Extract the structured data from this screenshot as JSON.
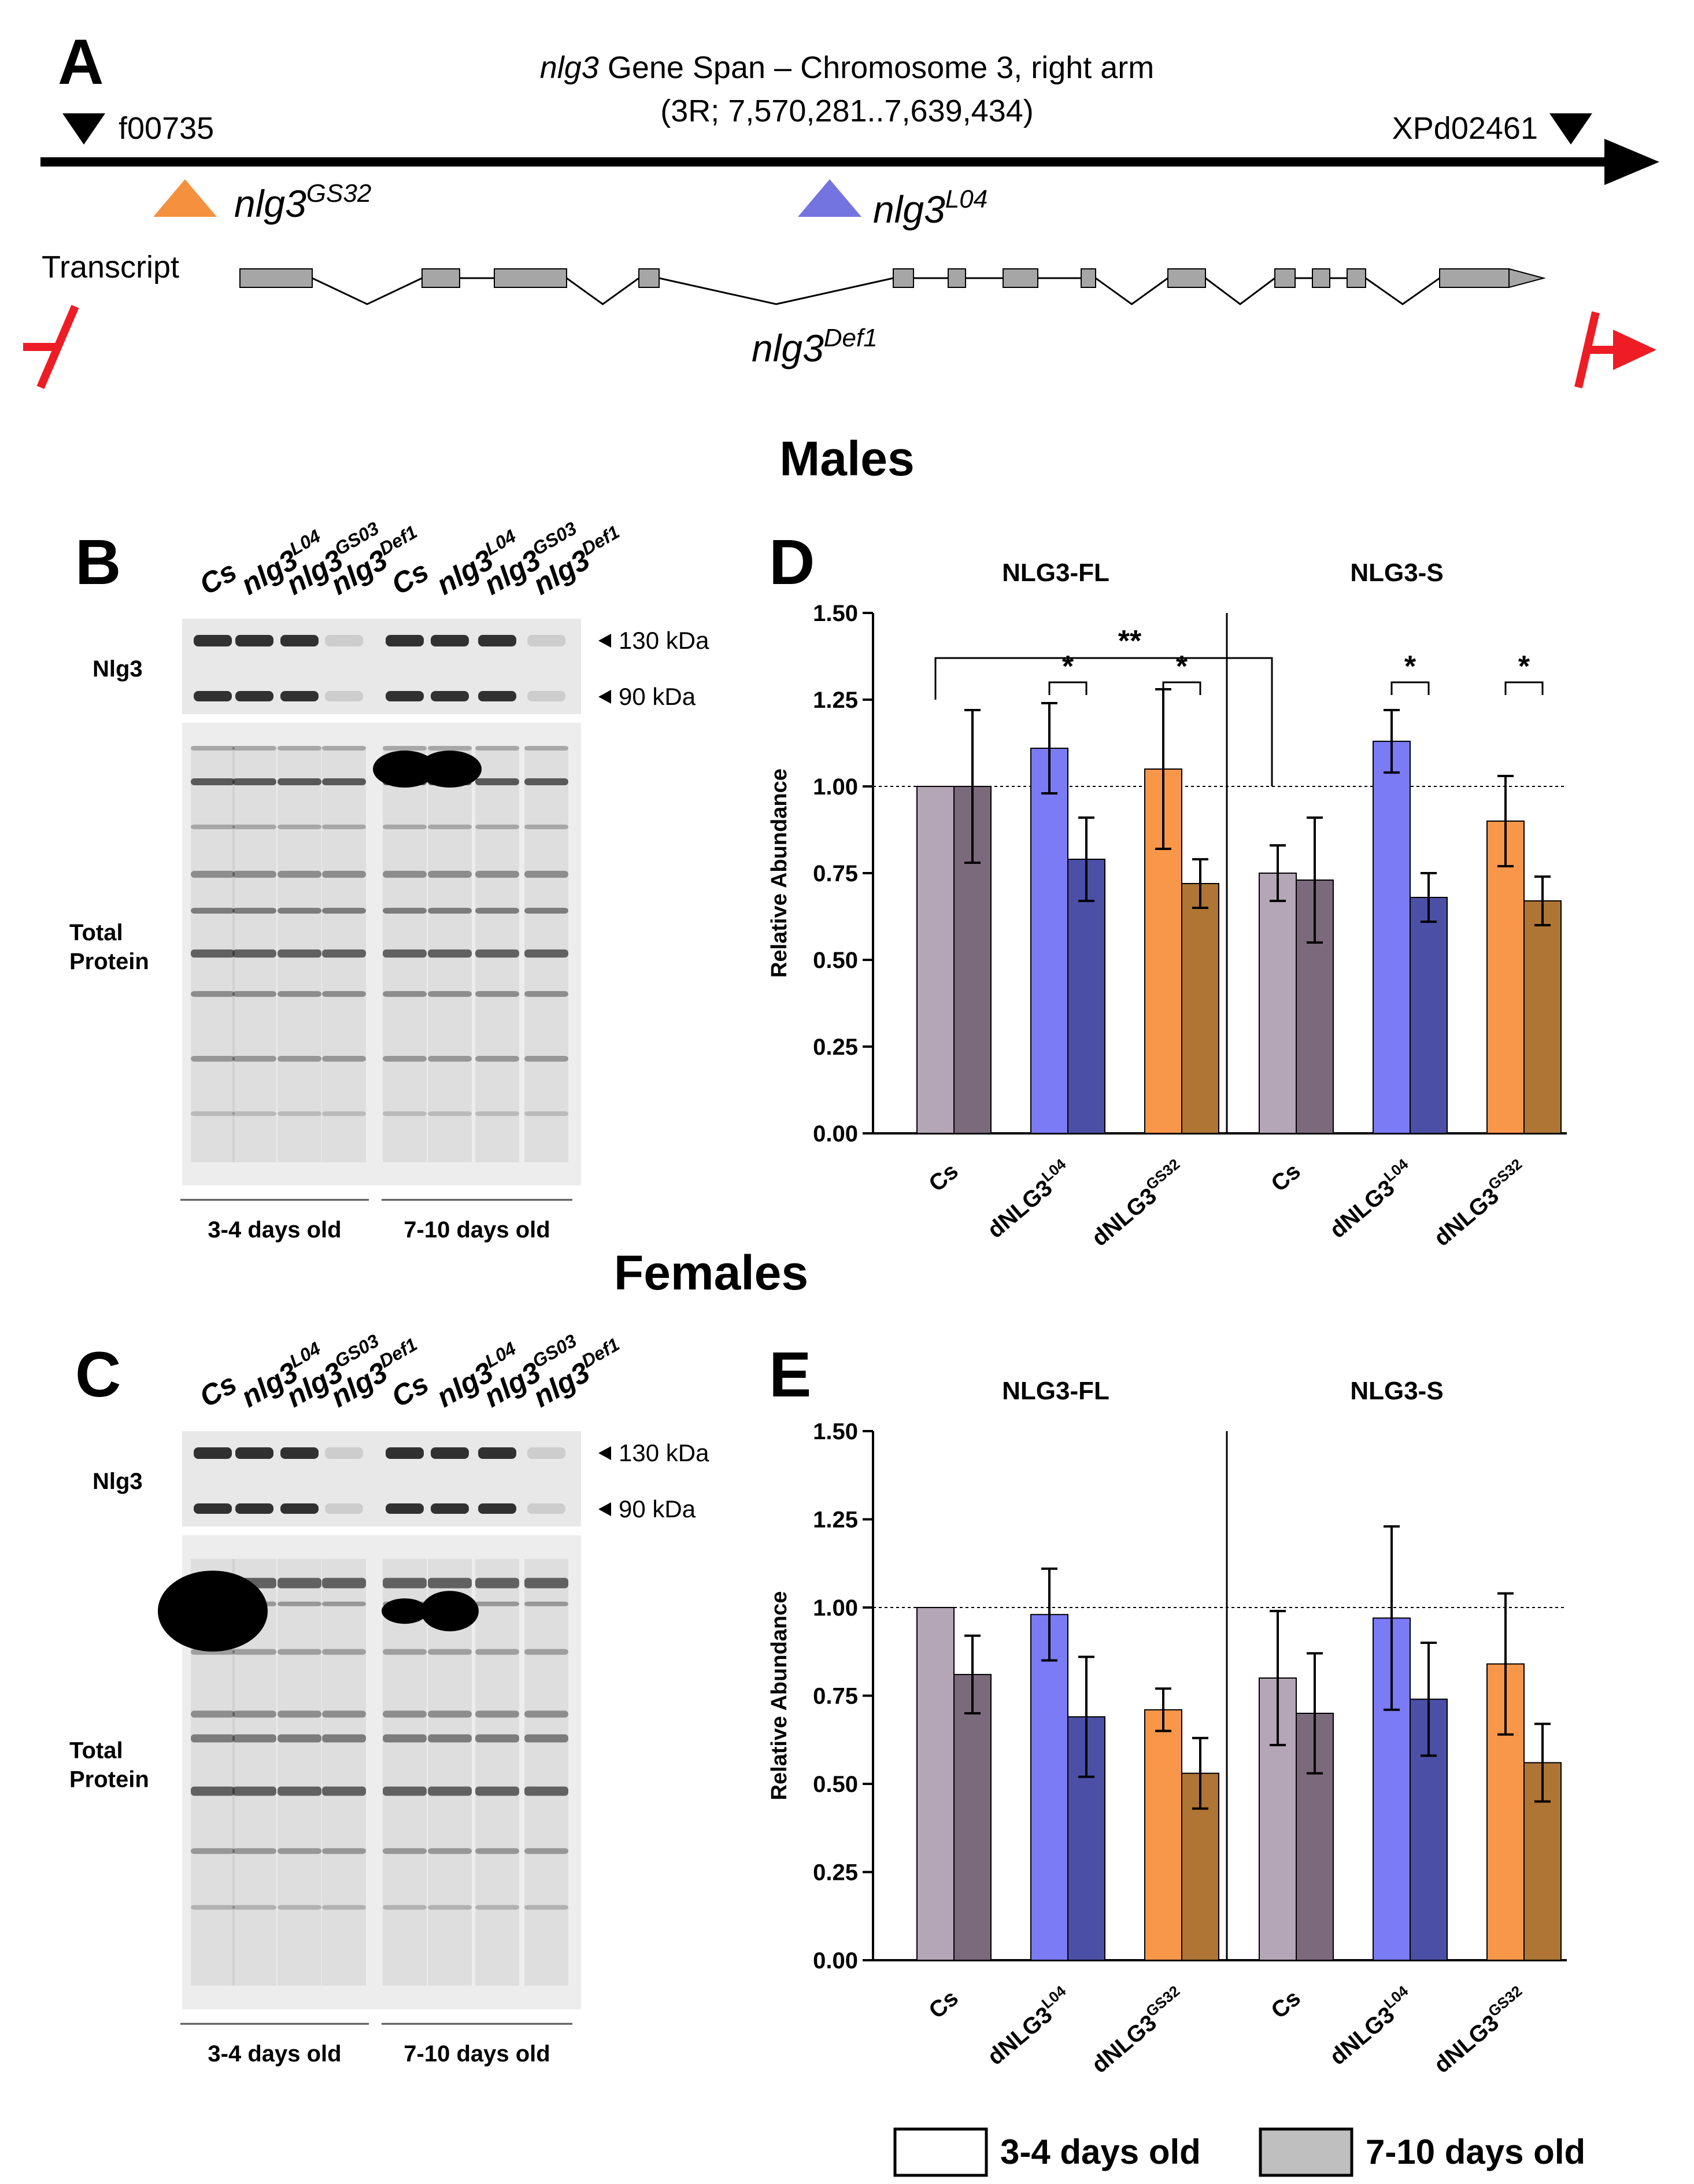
{
  "panels": {
    "a": {
      "letter": "A",
      "title_italic": "nlg3",
      "title_rest": " Gene Span – Chromosome 3, right arm",
      "coords": "(3R; 7,570,281..7,639,434)",
      "left_marker": "f00735",
      "right_marker": "XPd02461",
      "allele1_base": "nlg3",
      "allele1_sup": "GS32",
      "allele2_base": "nlg3",
      "allele2_sup": "L04",
      "transcript_label": "Transcript",
      "deletion_base": "nlg3",
      "deletion_sup": "Def1",
      "colors": {
        "gs32": "#f5913e",
        "l04": "#7474e0",
        "breakpoint": "#ee1c25",
        "exon": "#a6a6a6"
      }
    },
    "males_title": "Males",
    "females_title": "Females",
    "b": {
      "letter": "B"
    },
    "c": {
      "letter": "C"
    },
    "d": {
      "letter": "D"
    },
    "e": {
      "letter": "E"
    }
  },
  "blot": {
    "lanes": [
      {
        "base": "Cs",
        "sup": ""
      },
      {
        "base": "nlg3",
        "sup": "L04"
      },
      {
        "base": "nlg3",
        "sup": "GS03"
      },
      {
        "base": "nlg3",
        "sup": "Def1"
      },
      {
        "base": "Cs",
        "sup": ""
      },
      {
        "base": "nlg3",
        "sup": "L04"
      },
      {
        "base": "nlg3",
        "sup": "GS03"
      },
      {
        "base": "nlg3",
        "sup": "Def1"
      }
    ],
    "nlg3_label": "Nlg3",
    "total_protein_line1": "Total",
    "total_protein_line2": "Protein",
    "kda_130": "130 kDa",
    "kda_90": "90 kDa",
    "age_young": "3-4 days old",
    "age_old": "7-10 days old"
  },
  "legend": {
    "young": "3-4 days old",
    "old": "7-10 days old"
  },
  "chart_data": [
    {
      "panel": "D",
      "type": "bar",
      "ylabel": "Relative Abundance",
      "ylim": [
        0,
        1.5
      ],
      "yticks": [
        "0.00",
        "0.25",
        "0.50",
        "0.75",
        "1.00",
        "1.25",
        "1.50"
      ],
      "reference_line": 1.0,
      "groups": [
        "NLG3-FL",
        "NLG3-S"
      ],
      "categories": [
        {
          "base": "Cs",
          "sup": ""
        },
        {
          "base": "dNLG3",
          "sup": "L04"
        },
        {
          "base": "dNLG3",
          "sup": "GS32"
        }
      ],
      "series": [
        {
          "name": "3-4 days old",
          "values": [
            [
              1.0,
              1.11,
              1.05
            ],
            [
              0.75,
              1.13,
              0.9
            ]
          ],
          "errors": [
            [
              0,
              0.13,
              0.23
            ],
            [
              0.08,
              0.09,
              0.13
            ]
          ]
        },
        {
          "name": "7-10 days old",
          "values": [
            [
              1.0,
              0.79,
              0.72
            ],
            [
              0.73,
              0.68,
              0.67
            ]
          ],
          "errors": [
            [
              0.22,
              0.12,
              0.07
            ],
            [
              0.18,
              0.07,
              0.07
            ]
          ]
        }
      ],
      "significance": [
        {
          "label": "**",
          "from": "NLG3-FL Cs",
          "to": "NLG3-S Cs"
        },
        {
          "label": "*",
          "group": "NLG3-FL",
          "category": "dNLG3 L04"
        },
        {
          "label": "*",
          "group": "NLG3-FL",
          "category": "dNLG3 GS32"
        },
        {
          "label": "*",
          "group": "NLG3-S",
          "category": "dNLG3 L04"
        },
        {
          "label": "*",
          "group": "NLG3-S",
          "category": "dNLG3 GS32"
        }
      ],
      "colors": {
        "cs": [
          "#b4a6b6",
          "#7b6a7b"
        ],
        "l04": [
          "#7b7bf5",
          "#4b4fa5"
        ],
        "gs32": [
          "#f8974a",
          "#ae7534"
        ]
      }
    },
    {
      "panel": "E",
      "type": "bar",
      "ylabel": "Relative Abundance",
      "ylim": [
        0,
        1.5
      ],
      "yticks": [
        "0.00",
        "0.25",
        "0.50",
        "0.75",
        "1.00",
        "1.25",
        "1.50"
      ],
      "reference_line": 1.0,
      "groups": [
        "NLG3-FL",
        "NLG3-S"
      ],
      "categories": [
        {
          "base": "Cs",
          "sup": ""
        },
        {
          "base": "dNLG3",
          "sup": "L04"
        },
        {
          "base": "dNLG3",
          "sup": "GS32"
        }
      ],
      "series": [
        {
          "name": "3-4 days old",
          "values": [
            [
              1.0,
              0.98,
              0.71
            ],
            [
              0.8,
              0.97,
              0.84
            ]
          ],
          "errors": [
            [
              0,
              0.13,
              0.06
            ],
            [
              0.19,
              0.26,
              0.2
            ]
          ]
        },
        {
          "name": "7-10 days old",
          "values": [
            [
              0.81,
              0.69,
              0.53
            ],
            [
              0.7,
              0.74,
              0.56
            ]
          ],
          "errors": [
            [
              0.11,
              0.17,
              0.1
            ],
            [
              0.17,
              0.16,
              0.11
            ]
          ]
        }
      ],
      "significance": [],
      "colors": {
        "cs": [
          "#b4a6b6",
          "#7b6a7b"
        ],
        "l04": [
          "#7b7bf5",
          "#4b4fa5"
        ],
        "gs32": [
          "#f8974a",
          "#ae7534"
        ]
      }
    }
  ]
}
